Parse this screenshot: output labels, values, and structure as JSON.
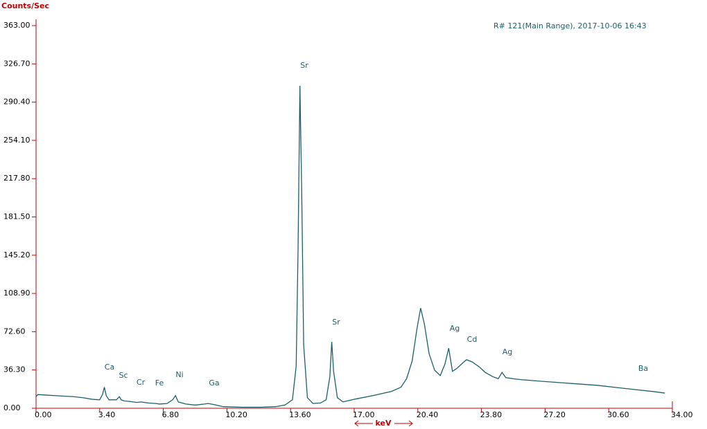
{
  "chart_data": {
    "type": "line",
    "y_label": "Counts/Sec",
    "x_label": "keV",
    "info": "R# 121(Main Range), 2017-10-06 16:43",
    "axis_color": "#c00000",
    "xlim": [
      0,
      34
    ],
    "ylim": [
      0,
      363
    ],
    "xticks": [
      {
        "value": 0,
        "label": "0.00"
      },
      {
        "value": 3.4,
        "label": "3.40"
      },
      {
        "value": 6.8,
        "label": "6.80"
      },
      {
        "value": 10.2,
        "label": "10.20"
      },
      {
        "value": 13.6,
        "label": "13.60"
      },
      {
        "value": 17,
        "label": "17.00"
      },
      {
        "value": 20.4,
        "label": "20.40"
      },
      {
        "value": 23.8,
        "label": "23.80"
      },
      {
        "value": 27.2,
        "label": "27.20"
      },
      {
        "value": 30.6,
        "label": "30.60"
      },
      {
        "value": 34,
        "label": "34.00"
      }
    ],
    "yticks": [
      {
        "value": 0,
        "label": "0.00"
      },
      {
        "value": 36.3,
        "label": "36.30"
      },
      {
        "value": 72.6,
        "label": "72.60"
      },
      {
        "value": 108.9,
        "label": "108.90"
      },
      {
        "value": 145.2,
        "label": "145.20"
      },
      {
        "value": 181.5,
        "label": "181.50"
      },
      {
        "value": 217.8,
        "label": "217.80"
      },
      {
        "value": 254.1,
        "label": "254.10"
      },
      {
        "value": 290.4,
        "label": "290.40"
      },
      {
        "value": 326.7,
        "label": "326.70"
      },
      {
        "value": 363,
        "label": "363.00"
      }
    ],
    "annotations": [
      "Ca",
      "Sc",
      "Cr",
      "Fe",
      "Ni",
      "Ga",
      "Sr",
      "Sr",
      "Ag",
      "Cd",
      "Ag",
      "Ba"
    ],
    "series": [
      {
        "color": "#1a5f6a",
        "x": [
          0,
          0.1,
          0.5,
          1,
          1.5,
          2,
          2.5,
          3,
          3.4,
          3.55,
          3.65,
          3.75,
          3.9,
          4.3,
          4.45,
          4.55,
          4.7,
          5,
          5.4,
          5.6,
          6,
          6.4,
          6.6,
          7,
          7.3,
          7.45,
          7.6,
          8,
          8.5,
          9,
          9.2,
          9.5,
          10,
          11,
          12,
          12.8,
          13.3,
          13.7,
          13.9,
          14.0,
          14.1,
          14.2,
          14.3,
          14.5,
          14.8,
          15.2,
          15.5,
          15.7,
          15.8,
          15.9,
          16.1,
          16.4,
          17,
          18,
          19,
          19.5,
          19.8,
          20.1,
          20.35,
          20.55,
          20.75,
          21,
          21.3,
          21.6,
          21.85,
          22.05,
          22.25,
          22.5,
          22.8,
          23.0,
          23.3,
          23.7,
          24.0,
          24.4,
          24.7,
          24.9,
          25.1,
          25.5,
          26,
          27,
          28,
          29,
          30,
          31,
          32,
          33,
          33.6
        ],
        "values": [
          11,
          13,
          12.5,
          12,
          11.5,
          11,
          10,
          8.5,
          8,
          13,
          20,
          12,
          8,
          8,
          11,
          8,
          7,
          6.5,
          5.5,
          6,
          5,
          4.5,
          4,
          4.5,
          8,
          12,
          6,
          4,
          3,
          4,
          4.5,
          3.5,
          1.5,
          1,
          1,
          1.5,
          3,
          8,
          40,
          150,
          306,
          200,
          60,
          10,
          4.5,
          5,
          8,
          30,
          63,
          35,
          10,
          6,
          8.5,
          12,
          16,
          20,
          28,
          45,
          75,
          95,
          80,
          52,
          36,
          31,
          42,
          57,
          35,
          38,
          43,
          46,
          44,
          39,
          34,
          30,
          28,
          34,
          29,
          28,
          27,
          25.6,
          24.3,
          23,
          21.7,
          19.7,
          17.7,
          15.8,
          14.4
        ]
      }
    ]
  }
}
